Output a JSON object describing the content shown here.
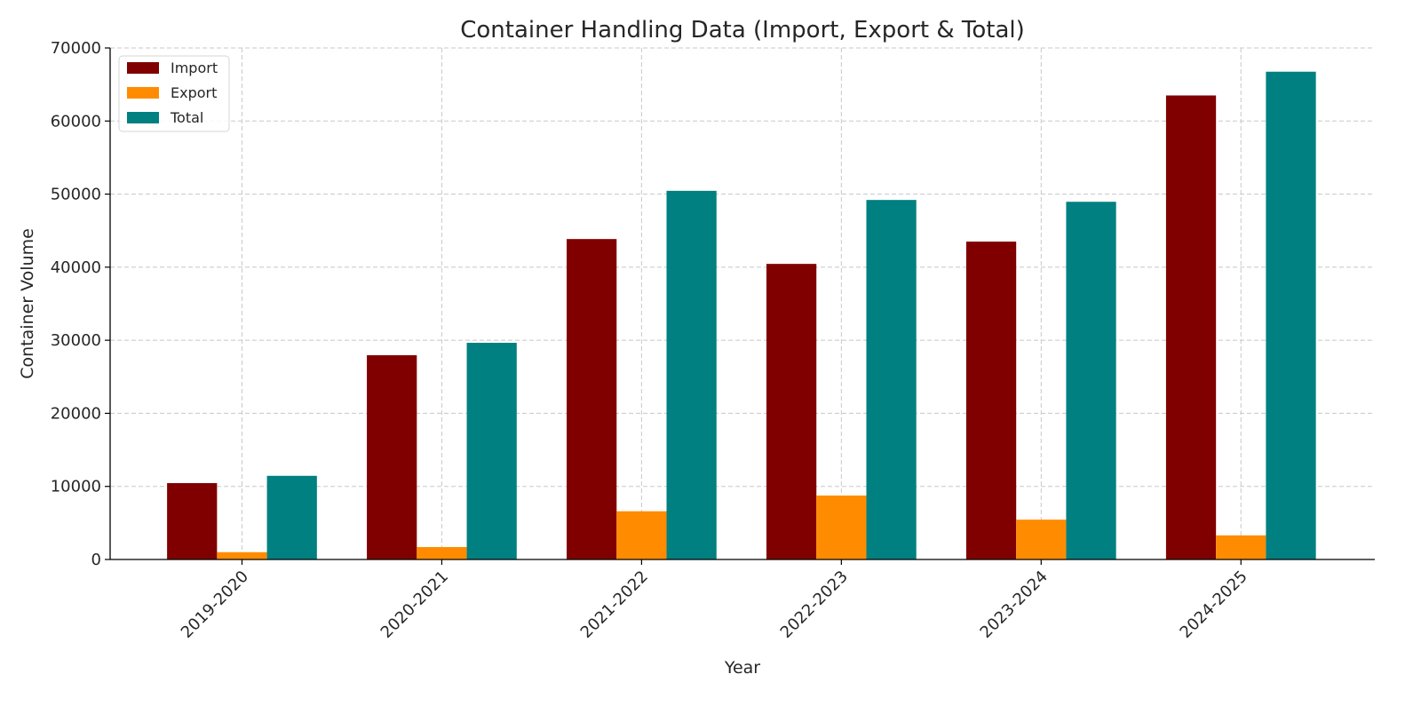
{
  "chart_data": {
    "type": "bar",
    "title": "Container Handling Data (Import, Export & Total)",
    "xlabel": "Year",
    "ylabel": "Container Volume",
    "categories": [
      "2019-2020",
      "2020-2021",
      "2021-2022",
      "2022-2023",
      "2023-2024",
      "2024-2025"
    ],
    "series": [
      {
        "name": "Import",
        "color": "#800000",
        "values": [
          10450,
          27950,
          43850,
          40450,
          43500,
          63500
        ]
      },
      {
        "name": "Export",
        "color": "#ff8c00",
        "values": [
          1000,
          1700,
          6600,
          8750,
          5450,
          3300
        ]
      },
      {
        "name": "Total",
        "color": "#008080",
        "values": [
          11450,
          29650,
          50450,
          49200,
          48950,
          66750
        ]
      }
    ],
    "ylim": [
      0,
      70000
    ],
    "yticks": [
      "0",
      "10000",
      "20000",
      "30000",
      "40000",
      "50000",
      "60000",
      "70000"
    ],
    "grid": true,
    "grid_style": "dashed",
    "legend_placement": "top-left"
  }
}
